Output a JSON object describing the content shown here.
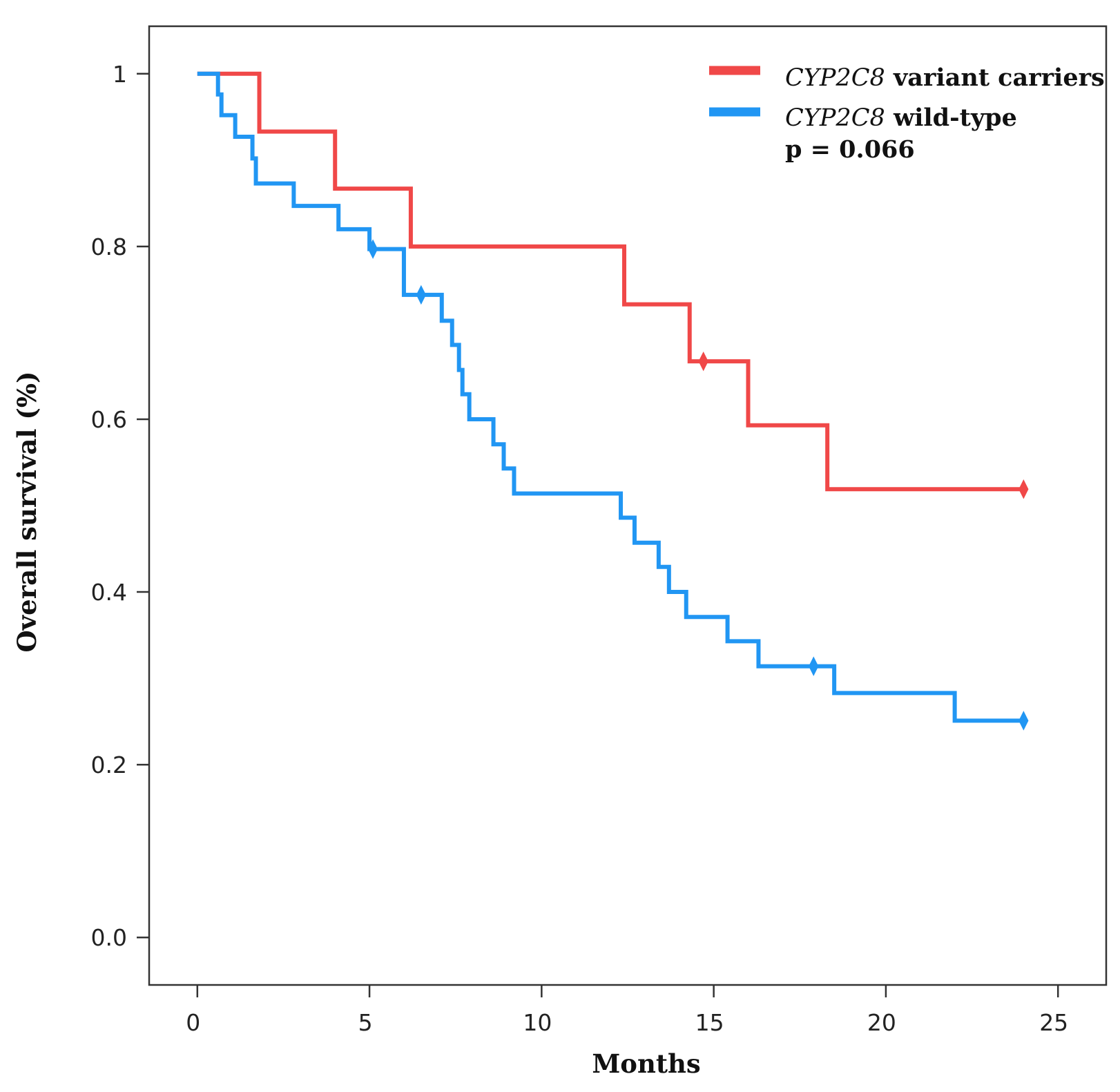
{
  "chart_data": {
    "type": "line",
    "subtype": "kaplan-meier step",
    "title": "",
    "xlabel": "Months",
    "ylabel": "Overall survival (%)",
    "xlim": [
      -1.4,
      26.4
    ],
    "ylim": [
      -0.055,
      1.055
    ],
    "x_ticks": [
      0,
      5,
      10,
      15,
      20,
      25
    ],
    "x_tick_labels": [
      "0",
      "5",
      "10",
      "15",
      "20",
      "25"
    ],
    "y_ticks": [
      0,
      0.2,
      0.4,
      0.6,
      0.8,
      1
    ],
    "y_tick_labels": [
      "0.0",
      "0.2",
      "0.4",
      "0.6",
      "0.8",
      "1"
    ],
    "grid": false,
    "legend_position": "top-right",
    "annotation": "p = 0.066",
    "series": [
      {
        "name_italic": "CYP2C8",
        "name_rest": " variant carriers",
        "color": "#f04848",
        "steps": [
          [
            0,
            1.0
          ],
          [
            1.8,
            0.933
          ],
          [
            4.0,
            0.867
          ],
          [
            6.2,
            0.8
          ],
          [
            12.4,
            0.733
          ],
          [
            14.3,
            0.667
          ],
          [
            16.0,
            0.593
          ],
          [
            18.3,
            0.519
          ],
          [
            24.0,
            0.519
          ]
        ],
        "censor_x": [
          14.7,
          24.0
        ]
      },
      {
        "name_italic": "CYP2C8",
        "name_rest": " wild-type",
        "color": "#2196f3",
        "steps": [
          [
            0,
            1.0
          ],
          [
            0.6,
            0.976
          ],
          [
            0.7,
            0.952
          ],
          [
            1.1,
            0.927
          ],
          [
            1.6,
            0.902
          ],
          [
            1.7,
            0.873
          ],
          [
            2.8,
            0.847
          ],
          [
            4.1,
            0.82
          ],
          [
            5.0,
            0.797
          ],
          [
            6.0,
            0.744
          ],
          [
            7.1,
            0.714
          ],
          [
            7.4,
            0.686
          ],
          [
            7.6,
            0.657
          ],
          [
            7.7,
            0.629
          ],
          [
            7.9,
            0.6
          ],
          [
            8.6,
            0.571
          ],
          [
            8.9,
            0.543
          ],
          [
            9.2,
            0.514
          ],
          [
            12.3,
            0.486
          ],
          [
            12.7,
            0.457
          ],
          [
            13.4,
            0.429
          ],
          [
            13.7,
            0.4
          ],
          [
            14.2,
            0.371
          ],
          [
            15.4,
            0.343
          ],
          [
            16.3,
            0.314
          ],
          [
            18.5,
            0.283
          ],
          [
            22.0,
            0.251
          ],
          [
            24.0,
            0.251
          ]
        ],
        "censor_x": [
          5.1,
          6.5,
          17.9,
          24.0
        ]
      }
    ]
  }
}
